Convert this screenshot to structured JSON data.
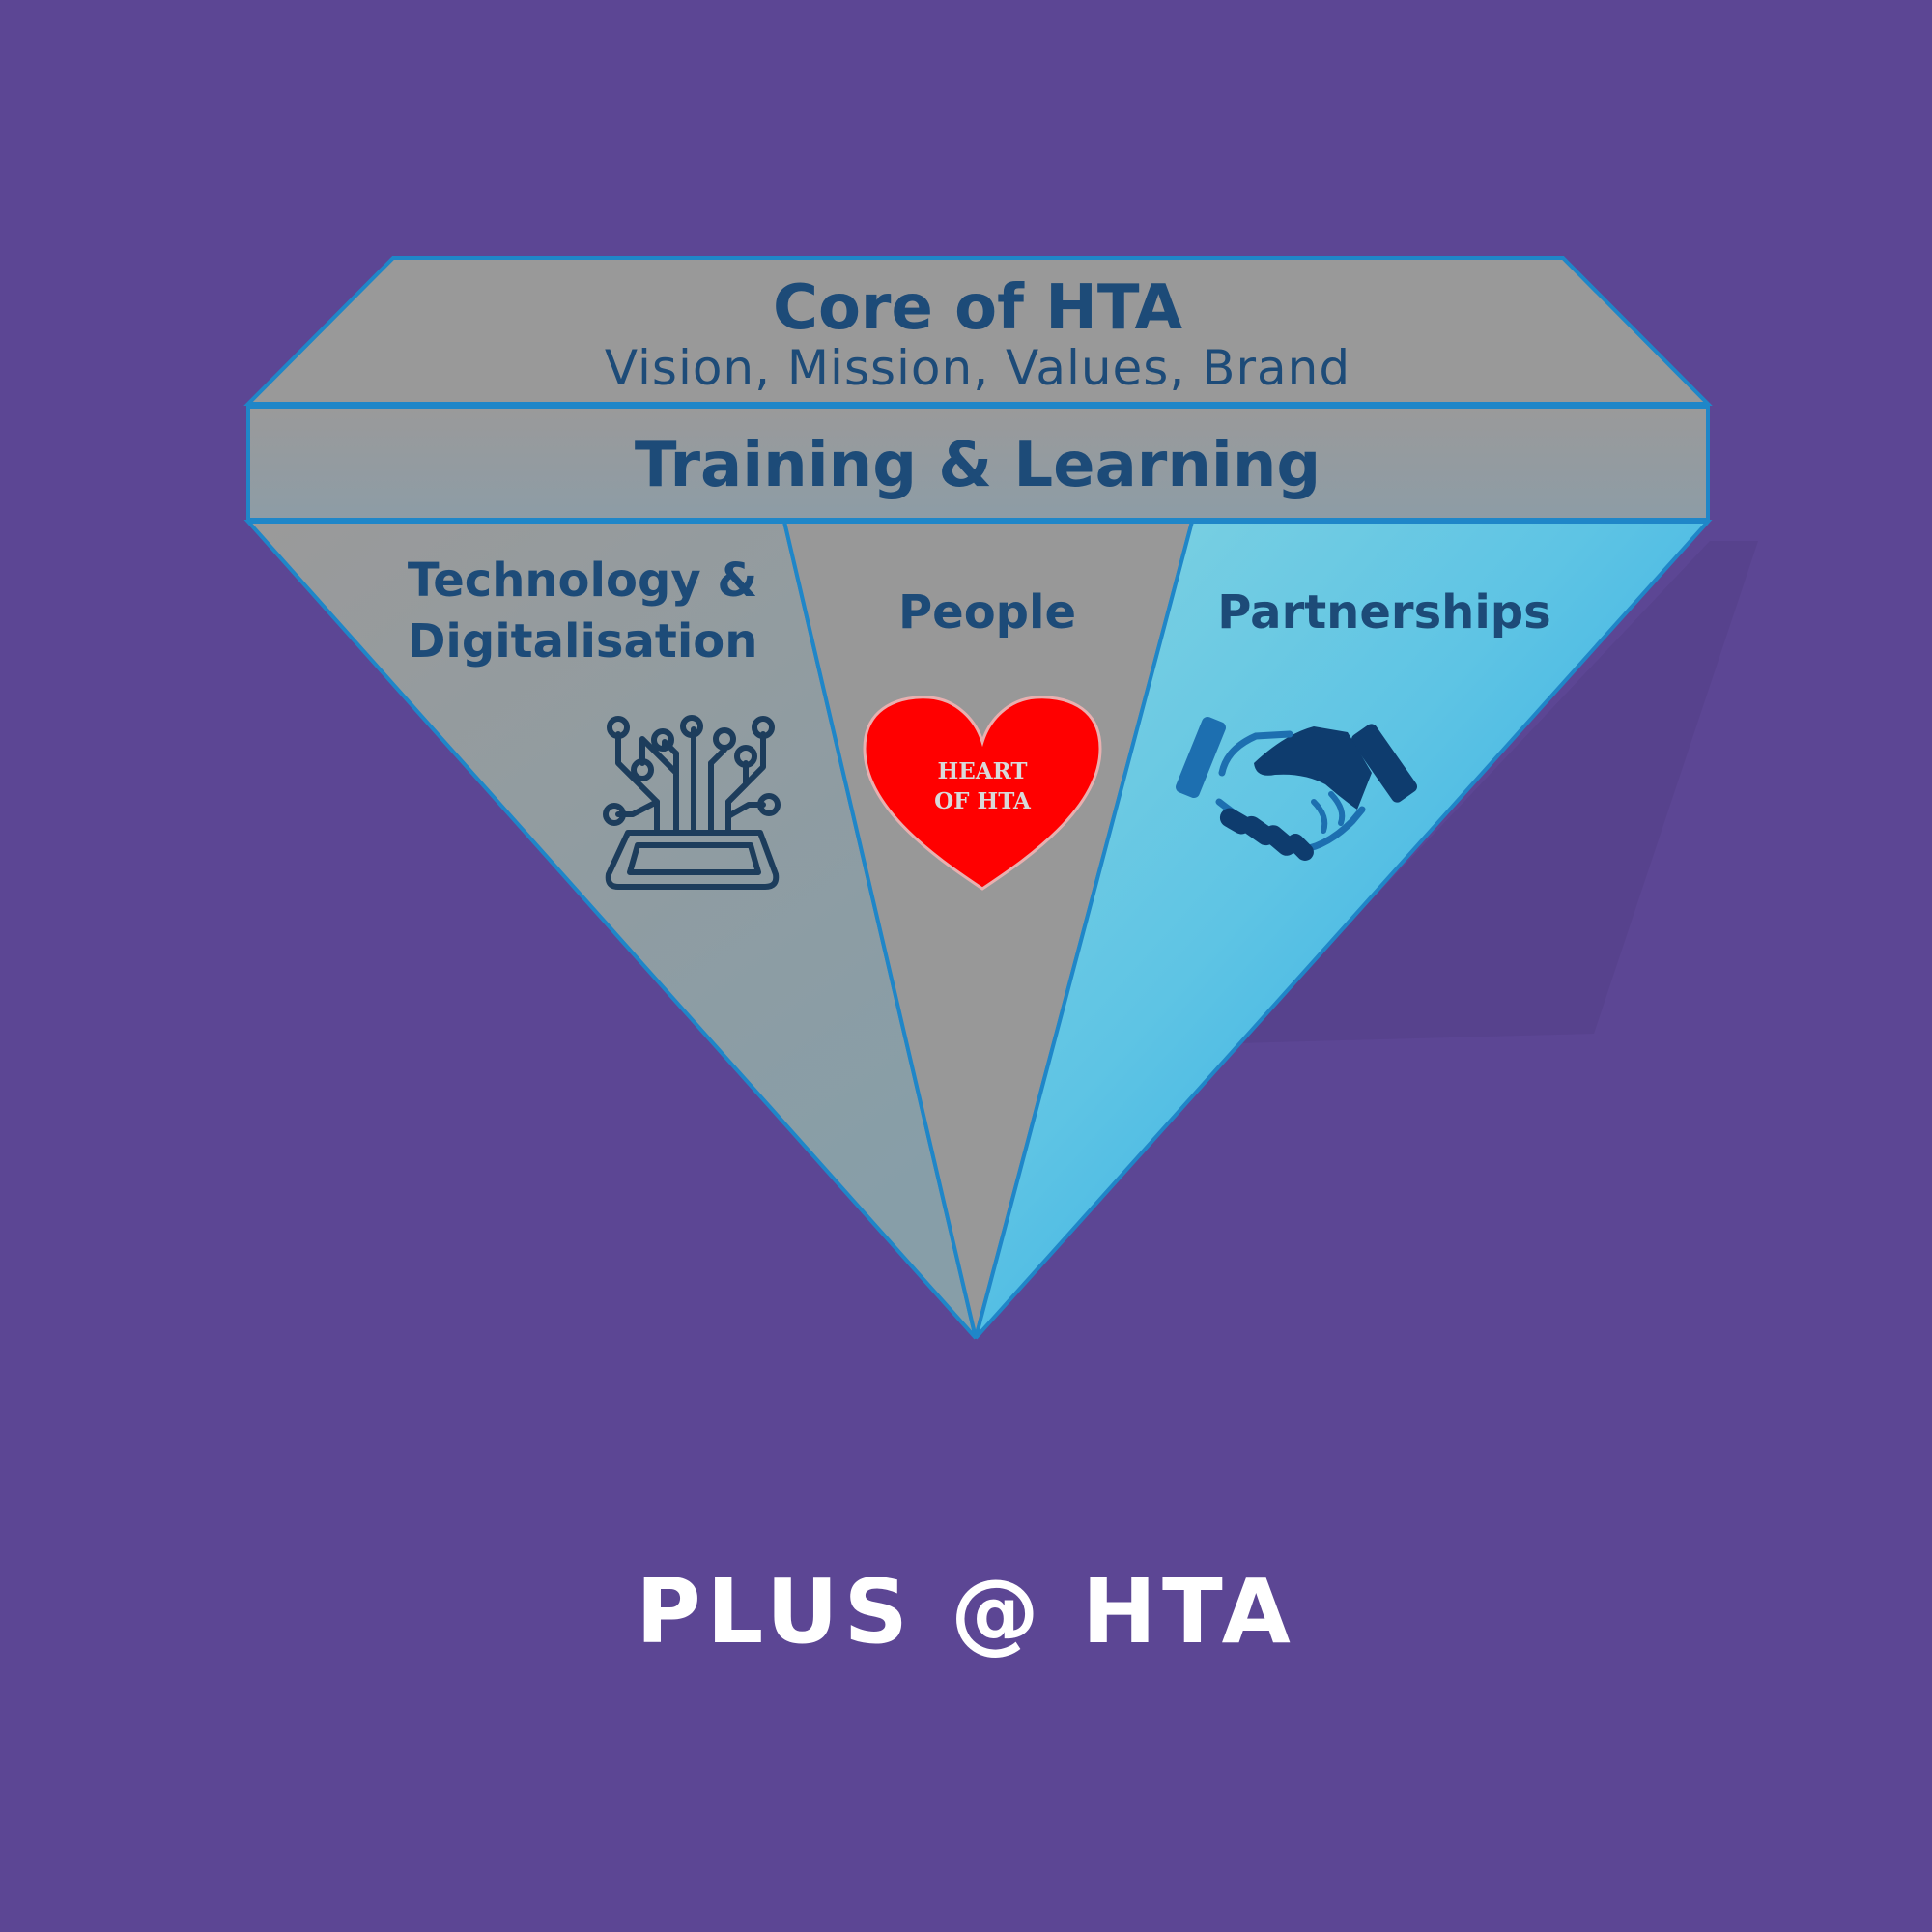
{
  "colors": {
    "background": "#5c4694",
    "facet_gray": "#9a9a9a",
    "facet_gray_dark": "#8a9aa6",
    "facet_blue_light": "#78cfe2",
    "facet_blue_dark": "#2ba8e0",
    "outline": "#1f86c8",
    "label_text": "#1d4b78",
    "heart": "#ff0000",
    "heart_text": "#d9d9d9",
    "icon_dark": "#1d3d5c",
    "handshake_light": "#1d6fb0",
    "handshake_dark": "#0e3c6e",
    "footer_text": "#ffffff"
  },
  "diagram": {
    "core": {
      "title": "Core of HTA",
      "subtitle": "Vision, Mission, Values, Brand"
    },
    "band": {
      "label": "Training & Learning"
    },
    "facets": {
      "technology": {
        "line1": "Technology &",
        "line2": "Digitalisation",
        "icon": "circuit-chip-icon"
      },
      "people": {
        "label": "People",
        "icon": "heart-icon",
        "heart_line1": "HEART",
        "heart_line2": "OF HTA"
      },
      "partnerships": {
        "label": "Partnerships",
        "icon": "handshake-icon"
      }
    }
  },
  "footer": {
    "text": "PLUS @ HTA"
  }
}
